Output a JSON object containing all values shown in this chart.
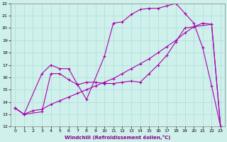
{
  "xlabel": "Windchill (Refroidissement éolien,°C)",
  "xlim": [
    -0.5,
    23.5
  ],
  "ylim": [
    12,
    22
  ],
  "xticks": [
    0,
    1,
    2,
    3,
    4,
    5,
    6,
    7,
    8,
    9,
    10,
    11,
    12,
    13,
    14,
    15,
    16,
    17,
    18,
    19,
    20,
    21,
    22,
    23
  ],
  "yticks": [
    12,
    13,
    14,
    15,
    16,
    17,
    18,
    19,
    20,
    21,
    22
  ],
  "background_color": "#cff0eb",
  "line_color": "#aa00aa",
  "grid_color": "#aadddd",
  "series": [
    {
      "x": [
        0,
        1,
        3,
        4,
        5,
        6,
        7,
        8,
        10,
        11,
        12,
        13,
        14,
        15,
        16,
        17,
        18,
        19,
        20,
        21,
        22,
        23
      ],
      "y": [
        13.5,
        13.0,
        16.3,
        17.0,
        16.7,
        16.7,
        15.4,
        14.2,
        17.7,
        20.4,
        20.5,
        21.1,
        21.5,
        21.6,
        21.6,
        21.8,
        22.0,
        21.2,
        20.4,
        18.4,
        15.3,
        12.0
      ]
    },
    {
      "x": [
        0,
        1,
        3,
        4,
        5,
        6,
        7,
        8,
        9,
        10,
        11,
        12,
        13,
        14,
        15,
        16,
        17,
        18,
        19,
        22,
        23
      ],
      "y": [
        13.5,
        13.0,
        13.2,
        16.3,
        16.3,
        15.8,
        15.4,
        15.6,
        15.6,
        15.5,
        15.5,
        15.6,
        15.7,
        15.6,
        16.3,
        17.0,
        17.8,
        18.9,
        20.0,
        20.3,
        12.0
      ]
    },
    {
      "x": [
        0,
        1,
        2,
        3,
        4,
        5,
        6,
        7,
        8,
        9,
        10,
        11,
        12,
        13,
        14,
        15,
        16,
        17,
        18,
        19,
        20,
        21,
        22,
        23
      ],
      "y": [
        13.5,
        13.0,
        13.3,
        13.4,
        13.8,
        14.1,
        14.4,
        14.7,
        15.0,
        15.3,
        15.6,
        15.9,
        16.3,
        16.7,
        17.1,
        17.5,
        18.0,
        18.5,
        19.0,
        19.6,
        20.1,
        20.4,
        20.3,
        12.0
      ]
    }
  ]
}
